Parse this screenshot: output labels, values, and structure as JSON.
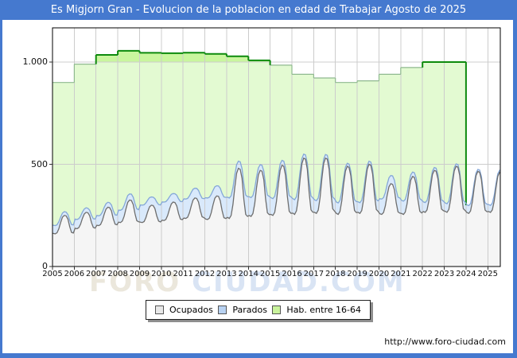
{
  "frame": {
    "title": "Es Migjorn Gran - Evolucion de la poblacion en edad de Trabajar Agosto de 2025",
    "url": "http://www.foro-ciudad.com",
    "accent_color": "#4579cf"
  },
  "watermark": {
    "part1": "FORO ",
    "part2": "CIUDAD.COM"
  },
  "legend": {
    "items": [
      {
        "label": "Ocupados",
        "swatch_color": "#e8e8e8"
      },
      {
        "label": "Parados",
        "swatch_color": "#b8d2f2"
      },
      {
        "label": "Hab. entre 16-64",
        "swatch_color": "#c9f39c"
      }
    ]
  },
  "chart_data": {
    "type": "area",
    "title": "Es Migjorn Gran - Evolucion de la poblacion en edad de Trabajar Agosto de 2025",
    "xlabel": "",
    "ylabel": "",
    "xlim": [
      2005,
      2025.6
    ],
    "ylim": [
      0,
      1167
    ],
    "grid": true,
    "threshold_band": 1000,
    "x_ticks": [
      2005,
      2006,
      2007,
      2008,
      2009,
      2010,
      2011,
      2012,
      2013,
      2014,
      2015,
      2016,
      2017,
      2018,
      2019,
      2020,
      2021,
      2022,
      2023,
      2024,
      2025
    ],
    "y_ticks": [
      {
        "value": 0,
        "label": "0"
      },
      {
        "value": 500,
        "label": "500"
      },
      {
        "value": 1000,
        "label": "1.000"
      }
    ],
    "colors": {
      "hab_fill_below": "#e3fad2",
      "hab_fill_above_threshold": "#c9f69e",
      "hab_line_dark": "#0d8a0d",
      "hab_line_pale": "#8fb98f",
      "parados_fill": "#d9e9fb",
      "parados_line": "#84a7d8",
      "ocupados_fill": "#f5f5f5",
      "ocupados_line": "#6e6e6e",
      "grid": "#cccccc",
      "plot_border": "#000000"
    },
    "hab_16_64": {
      "name": "Hab. entre 16-64",
      "style": "annual-step-area",
      "years": [
        2005,
        2006,
        2007,
        2008,
        2009,
        2010,
        2011,
        2012,
        2013,
        2014,
        2015,
        2016,
        2017,
        2018,
        2019,
        2020,
        2021,
        2022,
        2023
      ],
      "values": [
        900,
        990,
        1035,
        1055,
        1045,
        1043,
        1046,
        1040,
        1028,
        1008,
        985,
        940,
        922,
        900,
        908,
        940,
        973,
        1000,
        1000
      ],
      "ends_at_year": 2024
    },
    "ocupados": {
      "name": "Ocupados",
      "style": "monthly-area",
      "start_year": 2005,
      "monthly_by_year": [
        [
          162,
          160,
          165,
          185,
          216,
          241,
          250,
          248,
          232,
          194,
          167,
          164
        ],
        [
          187,
          185,
          190,
          207,
          235,
          257,
          265,
          263,
          249,
          215,
          191,
          188
        ],
        [
          202,
          200,
          205,
          225,
          256,
          281,
          290,
          288,
          272,
          234,
          207,
          204
        ],
        [
          217,
          215,
          222,
          246,
          283,
          314,
          325,
          323,
          303,
          257,
          224,
          219
        ],
        [
          217,
          215,
          220,
          239,
          268,
          292,
          300,
          298,
          283,
          247,
          222,
          218
        ],
        [
          227,
          225,
          230,
          250,
          281,
          306,
          315,
          313,
          297,
          259,
          232,
          229
        ],
        [
          237,
          235,
          241,
          263,
          297,
          325,
          335,
          333,
          315,
          273,
          243,
          239
        ],
        [
          232,
          230,
          237,
          262,
          301,
          334,
          345,
          343,
          322,
          274,
          239,
          235
        ],
        [
          240,
          235,
          250,
          304,
          387,
          456,
          480,
          475,
          431,
          328,
          255,
          245
        ],
        [
          250,
          245,
          259,
          308,
          385,
          448,
          470,
          466,
          425,
          331,
          263,
          254
        ],
        [
          255,
          250,
          265,
          319,
          402,
          471,
          495,
          490,
          446,
          343,
          270,
          260
        ],
        [
          261,
          255,
          272,
          332,
          426,
          503,
          530,
          525,
          475,
          360,
          277,
          266
        ],
        [
          265,
          260,
          276,
          336,
          427,
          503,
          530,
          525,
          476,
          363,
          282,
          271
        ],
        [
          260,
          255,
          269,
          321,
          401,
          467,
          490,
          485,
          443,
          344,
          274,
          264
        ],
        [
          265,
          260,
          274,
          327,
          409,
          476,
          500,
          495,
          452,
          351,
          279,
          270
        ],
        [
          258,
          255,
          264,
          297,
          348,
          390,
          405,
          402,
          375,
          312,
          267,
          261
        ],
        [
          259,
          255,
          266,
          307,
          370,
          422,
          440,
          436,
          403,
          325,
          270,
          262
        ],
        [
          269,
          265,
          277,
          322,
          392,
          450,
          470,
          466,
          429,
          343,
          281,
          273
        ],
        [
          270,
          265,
          279,
          328,
          405,
          468,
          490,
          486,
          445,
          351,
          283,
          274
        ],
        [
          264,
          260,
          272,
          317,
          387,
          445,
          465,
          461,
          424,
          338,
          276,
          268
        ],
        [
          269,
          265,
          277,
          320,
          386,
          441,
          460,
          456
        ]
      ]
    },
    "parados": {
      "name": "Parados",
      "style": "monthly-area-stacked-on-ocupados",
      "start_year": 2005,
      "monthly_by_year": [
        [
          40,
          40,
          39,
          34,
          26,
          20,
          18,
          18,
          22,
          32,
          38,
          39
        ],
        [
          45,
          45,
          44,
          39,
          31,
          24,
          22,
          22,
          27,
          36,
          43,
          44
        ],
        [
          48,
          48,
          47,
          41,
          33,
          26,
          24,
          24,
          29,
          39,
          46,
          47
        ],
        [
          59,
          60,
          58,
          52,
          41,
          33,
          30,
          31,
          36,
          49,
          58,
          59
        ],
        [
          84,
          85,
          82,
          72,
          57,
          45,
          40,
          41,
          49,
          68,
          81,
          83
        ],
        [
          89,
          90,
          87,
          77,
          60,
          47,
          42,
          43,
          52,
          72,
          86,
          88
        ],
        [
          94,
          95,
          92,
          82,
          66,
          53,
          48,
          49,
          57,
          77,
          91,
          93
        ],
        [
          104,
          105,
          102,
          90,
          71,
          56,
          50,
          51,
          61,
          84,
          101,
          103
        ],
        [
          99,
          100,
          96,
          82,
          60,
          42,
          35,
          37,
          48,
          75,
          95,
          97
        ],
        [
          91,
          92,
          88,
          74,
          52,
          34,
          28,
          29,
          41,
          68,
          87,
          89
        ],
        [
          81,
          82,
          79,
          66,
          46,
          30,
          24,
          25,
          36,
          60,
          77,
          80
        ],
        [
          71,
          72,
          69,
          57,
          40,
          25,
          20,
          21,
          30,
          52,
          68,
          70
        ],
        [
          61,
          62,
          59,
          50,
          35,
          22,
          18,
          19,
          27,
          45,
          58,
          60
        ],
        [
          55,
          56,
          54,
          45,
          31,
          19,
          15,
          16,
          23,
          40,
          53,
          54
        ],
        [
          51,
          52,
          50,
          42,
          29,
          19,
          15,
          16,
          22,
          38,
          49,
          51
        ],
        [
          74,
          75,
          73,
          65,
          53,
          44,
          40,
          41,
          47,
          62,
          72,
          74
        ],
        [
          64,
          65,
          62,
          53,
          38,
          26,
          22,
          23,
          31,
          49,
          62,
          63
        ],
        [
          47,
          48,
          46,
          38,
          27,
          17,
          14,
          15,
          21,
          35,
          45,
          47
        ],
        [
          41,
          42,
          40,
          34,
          23,
          15,
          12,
          13,
          18,
          31,
          40,
          41
        ],
        [
          37,
          38,
          36,
          30,
          21,
          13,
          10,
          11,
          16,
          27,
          36,
          37
        ],
        [
          34,
          34,
          33,
          27,
          19,
          12,
          10,
          10
        ]
      ]
    }
  }
}
